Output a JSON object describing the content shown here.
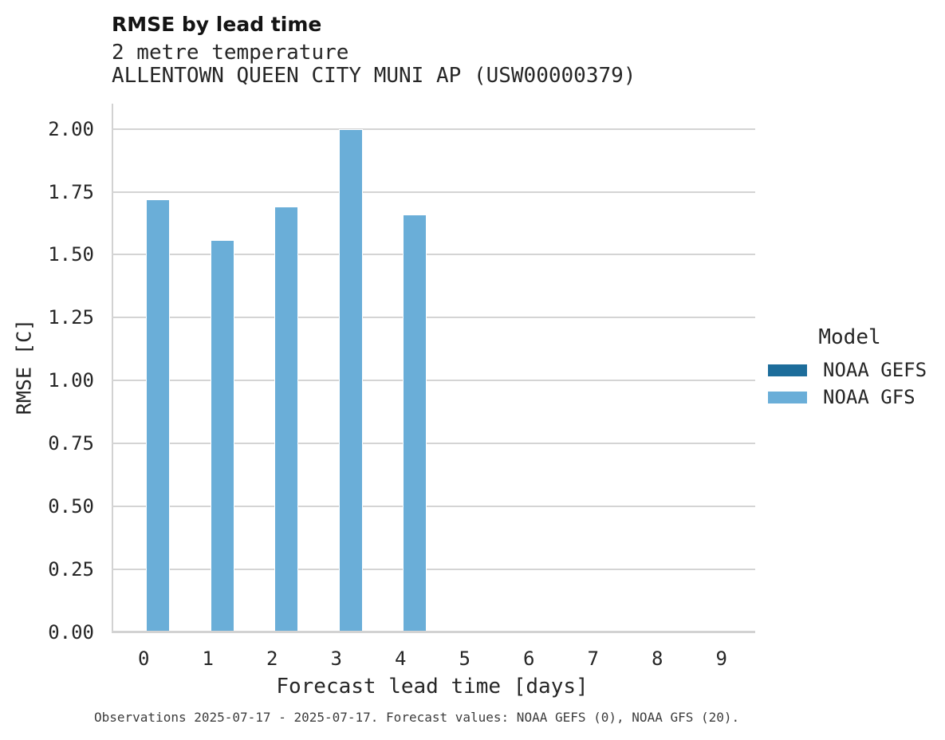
{
  "header": {
    "title": "RMSE by lead time",
    "subtitle_line1": "2 metre temperature",
    "subtitle_line2": "ALLENTOWN QUEEN CITY MUNI AP (USW00000379)"
  },
  "legend": {
    "title": "Model",
    "items": [
      {
        "label": "NOAA GEFS",
        "color": "#1d6d9b"
      },
      {
        "label": "NOAA GFS",
        "color": "#6aaed8"
      }
    ]
  },
  "caption": "Observations 2025-07-17 - 2025-07-17. Forecast values: NOAA GEFS (0), NOAA GFS (20).",
  "chart_data": {
    "type": "bar",
    "title": "RMSE by lead time",
    "subtitle": "2 metre temperature / ALLENTOWN QUEEN CITY MUNI AP (USW00000379)",
    "xlabel": "Forecast lead time [days]",
    "ylabel": "RMSE [C]",
    "categories": [
      0,
      1,
      2,
      3,
      4,
      5,
      6,
      7,
      8,
      9
    ],
    "series": [
      {
        "name": "NOAA GEFS",
        "color": "#1d6d9b",
        "values": [
          null,
          null,
          null,
          null,
          null,
          null,
          null,
          null,
          null,
          null
        ]
      },
      {
        "name": "NOAA GFS",
        "color": "#6aaed8",
        "values": [
          1.72,
          1.56,
          1.69,
          2.0,
          1.66,
          null,
          null,
          null,
          null,
          null
        ]
      }
    ],
    "ylim": [
      0,
      2.1
    ],
    "y_ticks": [
      0.0,
      0.25,
      0.5,
      0.75,
      1.0,
      1.25,
      1.5,
      1.75,
      2.0
    ],
    "grid": true,
    "legend_title": "Model",
    "legend_position": "right"
  }
}
